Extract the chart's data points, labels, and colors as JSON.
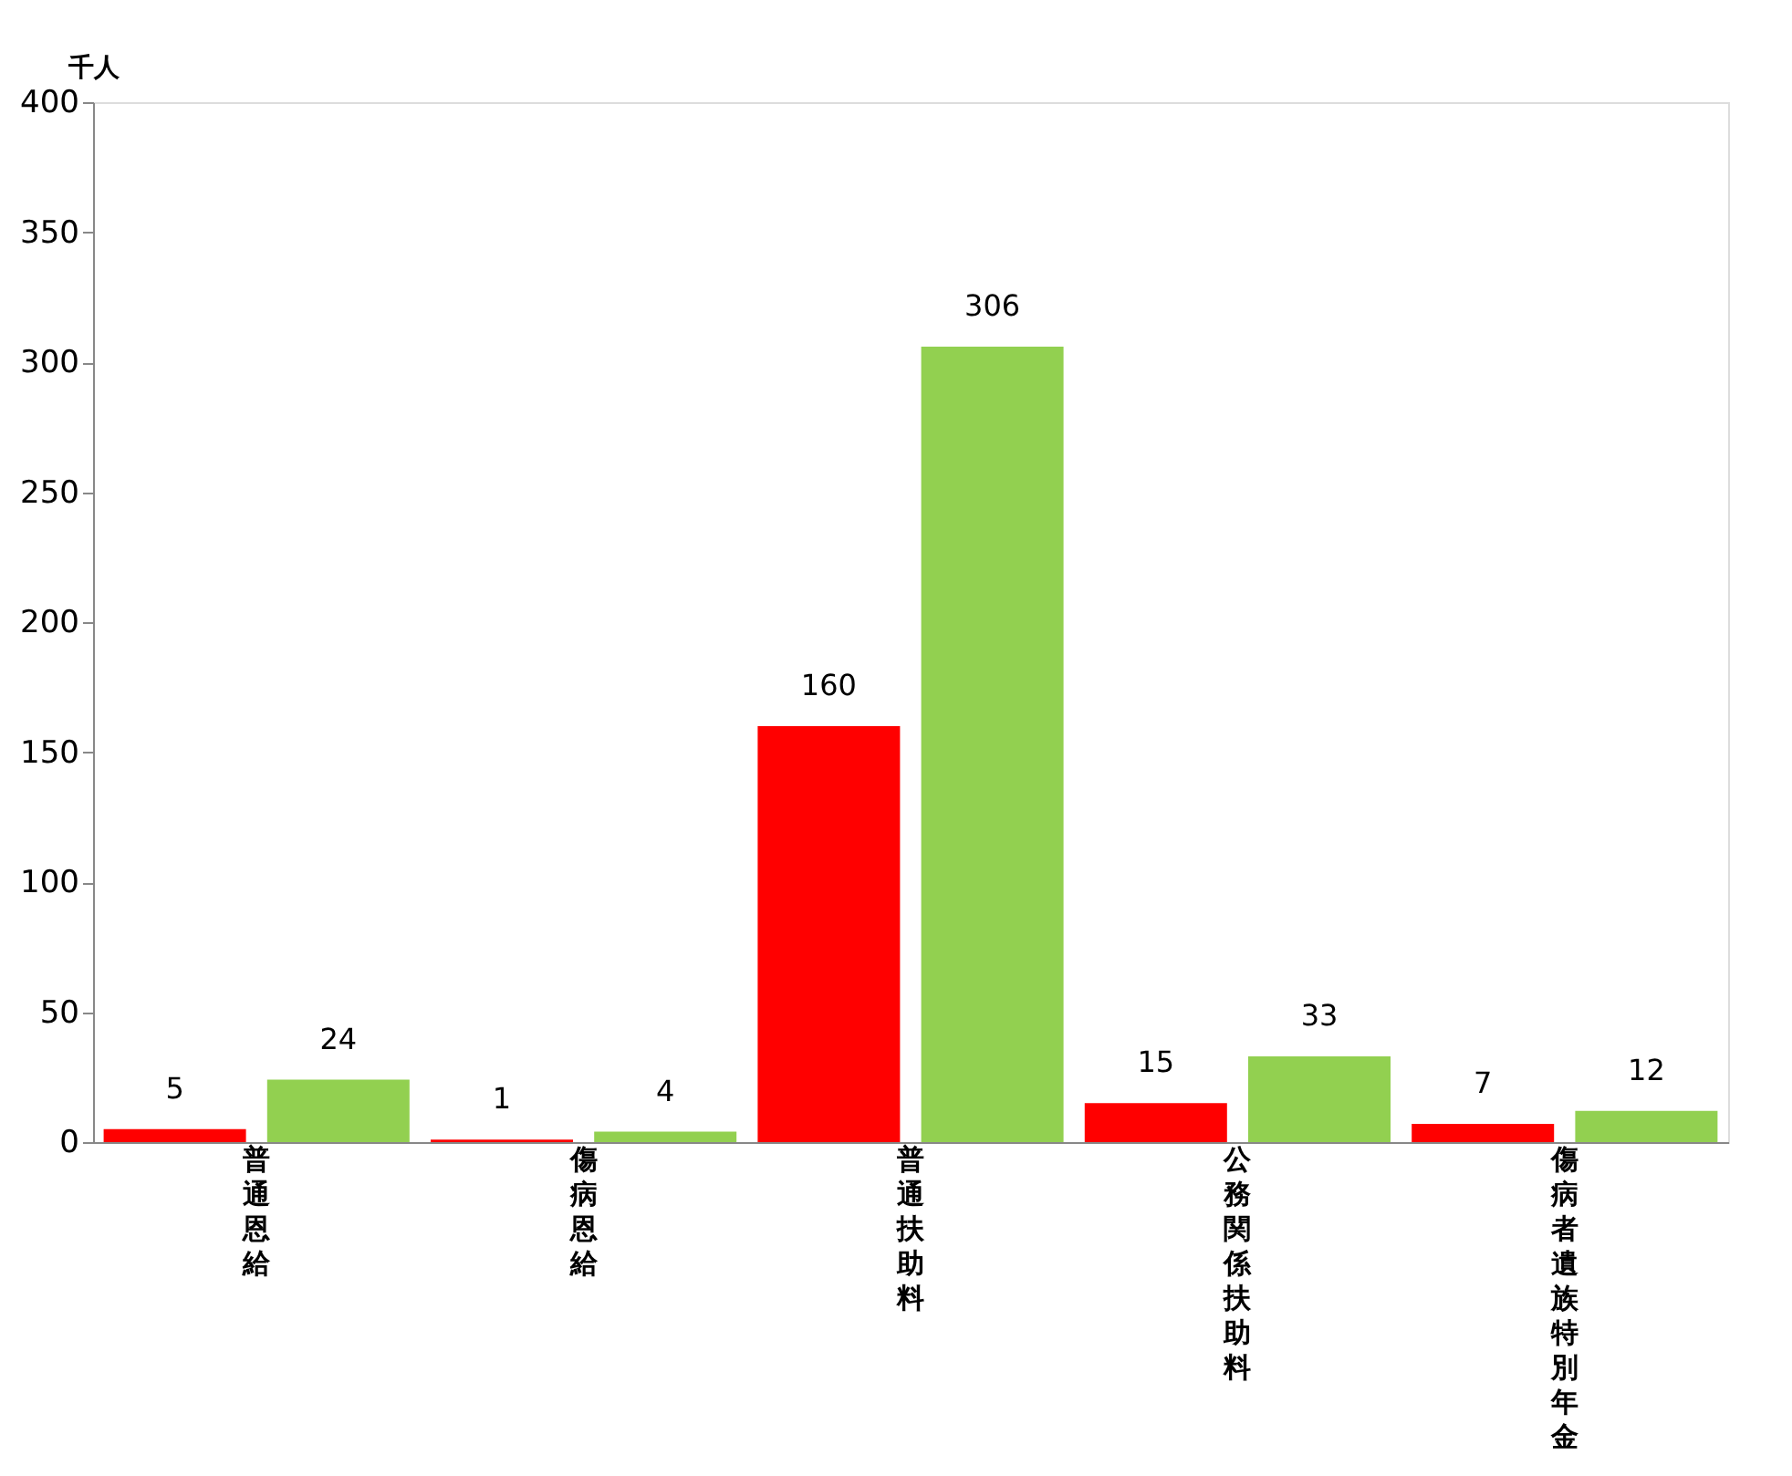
{
  "chart_data": {
    "type": "bar",
    "ylabel": "千人",
    "categories": [
      "普通恩給",
      "傷病恩給",
      "普通扶助料",
      "公務関係扶助料",
      "傷病者遺族特別年金"
    ],
    "series": [
      {
        "color": "#ff0000",
        "values": [
          5,
          1,
          160,
          15,
          7
        ]
      },
      {
        "color": "#92d050",
        "values": [
          24,
          4,
          306,
          33,
          12
        ]
      }
    ],
    "ylim": [
      0,
      400
    ],
    "yticks": [
      0,
      50,
      100,
      150,
      200,
      250,
      300,
      350,
      400
    ],
    "data_labels": true,
    "grid": false,
    "legend": false
  }
}
